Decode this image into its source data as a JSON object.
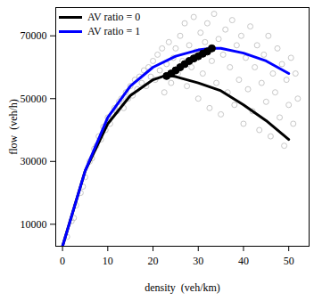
{
  "chart_data": {
    "type": "scatter",
    "x_label": "density  (veh/km)",
    "y_label": "flow  (veh/h)",
    "xlim": [
      -1.5,
      54.5
    ],
    "ylim": [
      3000,
      79000
    ],
    "xticks": [
      0,
      10,
      20,
      30,
      40,
      50
    ],
    "yticks": [
      10000,
      30000,
      50000,
      70000
    ],
    "legend": "top-left",
    "series": [
      {
        "type": "scatter",
        "marker": "open_circle",
        "color": "#c8c8c8",
        "x": [
          1,
          2,
          2.5,
          3,
          4,
          4.5,
          5,
          6,
          6.5,
          7,
          7.5,
          8,
          8.5,
          9,
          9.5,
          10,
          10.5,
          11,
          11.5,
          12,
          12.5,
          13,
          13.5,
          14,
          14.5,
          15,
          15.5,
          16,
          16.5,
          17,
          17.5,
          18,
          18.5,
          19,
          19.5,
          20,
          20.5,
          21,
          21.5,
          22,
          22.5,
          23,
          23.5,
          24,
          24.5,
          25,
          25.5,
          26,
          26.5,
          27,
          27.5,
          28,
          28.5,
          29,
          29.5,
          30,
          30.5,
          31,
          31.5,
          32,
          32.5,
          33,
          33.5,
          34,
          34.5,
          35,
          35.5,
          36,
          36.5,
          37,
          37.5,
          38,
          38.5,
          39,
          39.5,
          40,
          40.5,
          41,
          41.5,
          42,
          42.5,
          43,
          43.5,
          44,
          44.5,
          45,
          45.5,
          46,
          46.5,
          47,
          47.5,
          48,
          48.5,
          49,
          49.5,
          50,
          50.5,
          51,
          51.5,
          52
        ],
        "values": [
          6000,
          11000,
          12000,
          16000,
          20000,
          22000,
          25000,
          30000,
          31000,
          34000,
          35000,
          38000,
          37000,
          41000,
          40000,
          44000,
          42000,
          45000,
          47000,
          46000,
          49000,
          50000,
          47000,
          52000,
          50000,
          54000,
          51000,
          56000,
          53000,
          57000,
          55000,
          59000,
          54000,
          60000,
          57000,
          62000,
          56000,
          64000,
          59000,
          66000,
          52000,
          61000,
          68000,
          55000,
          63000,
          66000,
          58000,
          70000,
          62000,
          74000,
          54000,
          67000,
          60000,
          76000,
          65000,
          50000,
          71000,
          58000,
          68000,
          74000,
          47000,
          62000,
          77000,
          55000,
          69000,
          45000,
          64000,
          72000,
          52000,
          60000,
          75000,
          48000,
          67000,
          56000,
          70000,
          42000,
          63000,
          53000,
          73000,
          46000,
          60000,
          67000,
          40000,
          55000,
          64000,
          49000,
          70000,
          38000,
          58000,
          52000,
          66000,
          44000,
          61000,
          35000,
          56000,
          48000,
          63000,
          42000,
          58000,
          50000
        ]
      },
      {
        "name": "AV ratio = 0",
        "type": "line",
        "color": "#000000",
        "x": [
          0,
          5,
          10,
          15,
          20,
          23,
          25,
          30,
          35,
          40,
          45,
          50
        ],
        "values": [
          3000,
          27000,
          42000,
          51000,
          56000,
          57500,
          57000,
          55000,
          52500,
          48000,
          43000,
          37000
        ]
      },
      {
        "name": "AV ratio = 1",
        "type": "line",
        "color": "#0000ff",
        "x": [
          0,
          5,
          10,
          15,
          20,
          25,
          30,
          33,
          35,
          40,
          45,
          50
        ],
        "values": [
          3000,
          27000,
          44000,
          54000,
          60000,
          63500,
          65500,
          66000,
          66000,
          64500,
          62000,
          58000
        ]
      },
      {
        "type": "scatter",
        "marker": "filled_circle",
        "color": "#000000",
        "x": [
          23,
          24,
          25,
          26,
          27,
          28,
          29,
          30,
          31,
          32,
          33
        ],
        "values": [
          57200,
          58000,
          59000,
          60000,
          61000,
          62000,
          62800,
          63500,
          64300,
          65000,
          66000
        ]
      }
    ]
  }
}
